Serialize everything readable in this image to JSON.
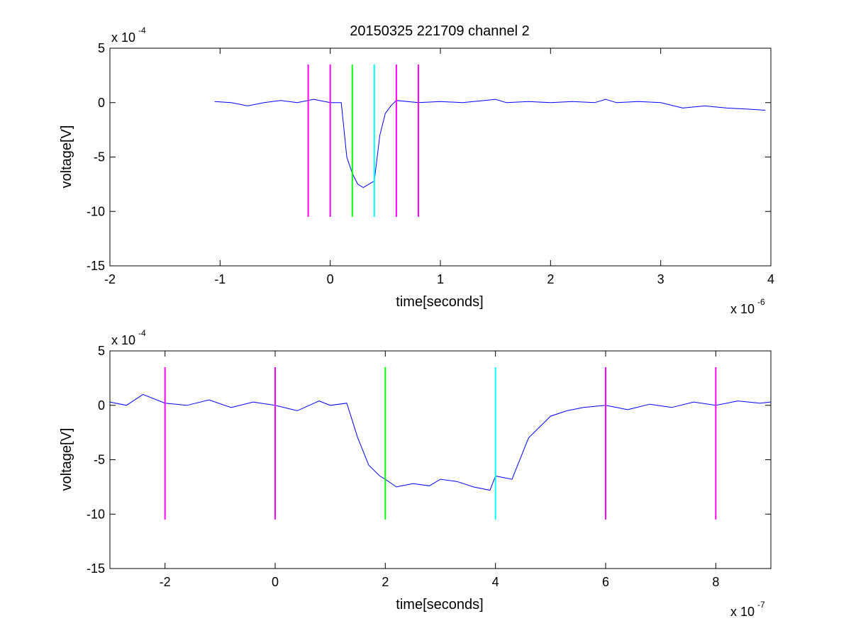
{
  "chart_data": [
    {
      "type": "line",
      "title": "20150325 221709 channel 2",
      "xlabel": "time[seconds]",
      "ylabel": "voltage[V]",
      "x_scale_label": "x 10",
      "x_scale_exponent": "-6",
      "y_scale_label": "x 10",
      "y_scale_exponent": "-4",
      "xlim": [
        -2,
        4
      ],
      "ylim": [
        -15,
        5
      ],
      "x_units_scale": 1e-06,
      "y_units_scale": 0.0001,
      "xticks": [
        -2,
        -1,
        0,
        1,
        2,
        3,
        4
      ],
      "xtick_labels": [
        "-2",
        "-1",
        "0",
        "1",
        "2",
        "3",
        "4"
      ],
      "yticks": [
        -15,
        -10,
        -5,
        0,
        5
      ],
      "ytick_labels": [
        "-15",
        "-10",
        "-5",
        "0",
        "5"
      ],
      "grid": false,
      "series": [
        {
          "color": "#0000ff",
          "x": [
            -1.05,
            -0.9,
            -0.75,
            -0.6,
            -0.45,
            -0.3,
            -0.15,
            0.0,
            0.1,
            0.15,
            0.2,
            0.25,
            0.3,
            0.35,
            0.4,
            0.45,
            0.5,
            0.55,
            0.6,
            0.8,
            1.0,
            1.2,
            1.4,
            1.5,
            1.6,
            1.8,
            2.0,
            2.2,
            2.4,
            2.5,
            2.6,
            2.8,
            3.0,
            3.2,
            3.3,
            3.4,
            3.6,
            3.8,
            3.95
          ],
          "y": [
            0.1,
            0.0,
            -0.3,
            0.0,
            0.2,
            0.0,
            0.3,
            0.0,
            0.0,
            -5.0,
            -6.5,
            -7.5,
            -7.8,
            -7.5,
            -7.2,
            -3.0,
            -1.0,
            -0.3,
            0.2,
            0.0,
            0.1,
            0.0,
            0.2,
            0.3,
            0.0,
            0.1,
            0.0,
            0.1,
            0.0,
            0.3,
            0.0,
            0.1,
            0.0,
            -0.5,
            -0.4,
            -0.3,
            -0.5,
            -0.6,
            -0.7
          ]
        }
      ],
      "vertical_markers": [
        {
          "x": -0.2,
          "color": "#ff00ff",
          "y_range": [
            -10.5,
            3.5
          ]
        },
        {
          "x": 0.0,
          "color": "#ff00ff",
          "y_range": [
            -10.5,
            3.5
          ]
        },
        {
          "x": 0.2,
          "color": "#00ff00",
          "y_range": [
            -10.5,
            3.5
          ]
        },
        {
          "x": 0.4,
          "color": "#00ffff",
          "y_range": [
            -10.5,
            3.5
          ]
        },
        {
          "x": 0.6,
          "color": "#ff00ff",
          "y_range": [
            -10.5,
            3.5
          ]
        },
        {
          "x": 0.8,
          "color": "#ff00ff",
          "y_range": [
            -10.5,
            3.5
          ]
        }
      ]
    },
    {
      "type": "line",
      "title": "",
      "xlabel": "time[seconds]",
      "ylabel": "voltage[V]",
      "x_scale_label": "x 10",
      "x_scale_exponent": "-7",
      "y_scale_label": "x 10",
      "y_scale_exponent": "-4",
      "xlim": [
        -3,
        9
      ],
      "ylim": [
        -15,
        5
      ],
      "x_units_scale": 1e-07,
      "y_units_scale": 0.0001,
      "xticks": [
        -2,
        0,
        2,
        4,
        6,
        8
      ],
      "xtick_labels": [
        "-2",
        "0",
        "2",
        "4",
        "6",
        "8"
      ],
      "yticks": [
        -15,
        -10,
        -5,
        0,
        5
      ],
      "ytick_labels": [
        "-15",
        "-10",
        "-5",
        "0",
        "5"
      ],
      "grid": false,
      "series": [
        {
          "color": "#0000ff",
          "x": [
            -3.0,
            -2.7,
            -2.4,
            -2.0,
            -1.6,
            -1.2,
            -0.8,
            -0.4,
            0.0,
            0.4,
            0.8,
            1.0,
            1.3,
            1.5,
            1.7,
            1.9,
            2.0,
            2.2,
            2.5,
            2.8,
            3.0,
            3.3,
            3.6,
            3.9,
            4.0,
            4.3,
            4.6,
            4.8,
            5.0,
            5.3,
            5.6,
            6.0,
            6.4,
            6.8,
            7.2,
            7.6,
            8.0,
            8.4,
            8.8,
            9.0
          ],
          "y": [
            0.3,
            0.0,
            1.0,
            0.2,
            0.0,
            0.5,
            -0.2,
            0.3,
            0.0,
            -0.5,
            0.4,
            0.0,
            0.2,
            -3.0,
            -5.5,
            -6.5,
            -6.8,
            -7.5,
            -7.2,
            -7.4,
            -6.8,
            -7.0,
            -7.5,
            -7.8,
            -6.5,
            -6.8,
            -3.0,
            -2.0,
            -1.0,
            -0.5,
            -0.2,
            0.0,
            -0.4,
            0.1,
            -0.2,
            0.3,
            0.0,
            0.4,
            0.2,
            0.3
          ]
        }
      ],
      "vertical_markers": [
        {
          "x": -2,
          "color": "#ff00ff",
          "y_range": [
            -10.5,
            3.5
          ]
        },
        {
          "x": 0,
          "color": "#ff00ff",
          "y_range": [
            -10.5,
            3.5
          ]
        },
        {
          "x": 2,
          "color": "#00ff00",
          "y_range": [
            -10.5,
            3.5
          ]
        },
        {
          "x": 4,
          "color": "#00ffff",
          "y_range": [
            -10.5,
            3.5
          ]
        },
        {
          "x": 6,
          "color": "#ff00ff",
          "y_range": [
            -10.5,
            3.5
          ]
        },
        {
          "x": 8,
          "color": "#ff00ff",
          "y_range": [
            -10.5,
            3.5
          ]
        }
      ]
    }
  ]
}
